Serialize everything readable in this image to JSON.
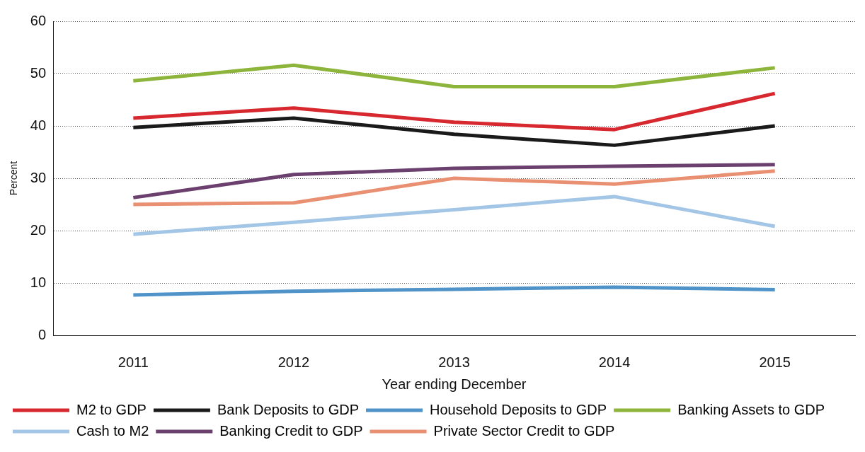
{
  "chart_data": {
    "type": "line",
    "xlabel": "Year ending December",
    "ylabel": "Percent",
    "categories": [
      "2011",
      "2012",
      "2013",
      "2014",
      "2015"
    ],
    "series": [
      {
        "name": "M2 to GDP",
        "color": "#d7282f",
        "values": [
          41.5,
          43.4,
          40.7,
          39.3,
          46.2
        ]
      },
      {
        "name": "Bank Deposits to GDP",
        "color": "#1a1a1a",
        "values": [
          39.7,
          41.5,
          38.4,
          36.3,
          40.0
        ]
      },
      {
        "name": "Household Deposits to GDP",
        "color": "#4f93c9",
        "values": [
          7.7,
          8.4,
          8.8,
          9.2,
          8.7
        ]
      },
      {
        "name": "Banking Assets to GDP",
        "color": "#8db53c",
        "values": [
          48.6,
          51.6,
          47.5,
          47.5,
          51.1
        ]
      },
      {
        "name": "Cash to M2",
        "color": "#a4c6e6",
        "values": [
          19.3,
          21.6,
          24.0,
          26.5,
          20.8
        ]
      },
      {
        "name": "Banking Credit to GDP",
        "color": "#6b3f6e",
        "values": [
          26.3,
          30.7,
          31.9,
          32.3,
          32.6
        ]
      },
      {
        "name": "Private Sector Credit to GDP",
        "color": "#ea9072",
        "values": [
          25.0,
          25.3,
          30.0,
          28.9,
          31.4
        ]
      }
    ],
    "ylim": [
      0,
      60
    ],
    "yticks": [
      0,
      10,
      20,
      30,
      40,
      50,
      60
    ],
    "grid": "y",
    "legend": "bottom",
    "marker": "none",
    "line_style": "solid"
  }
}
